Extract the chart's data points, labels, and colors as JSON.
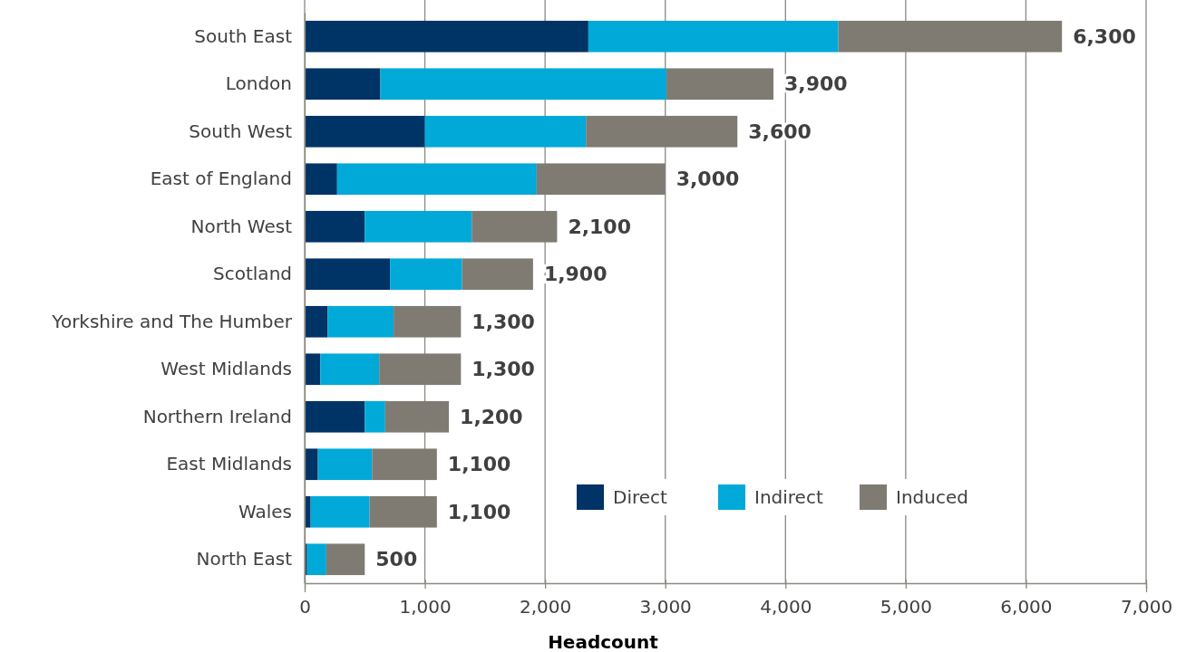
{
  "chart_data": {
    "type": "bar",
    "orientation": "horizontal",
    "stacked": true,
    "xlabel": "Headcount",
    "categories": [
      "South East",
      "London",
      "South West",
      "East of England",
      "North West",
      "Scotland",
      "Yorkshire and The Humber",
      "West Midlands",
      "Northern Ireland",
      "East Midlands",
      "Wales",
      "North East"
    ],
    "series": [
      {
        "name": "Direct",
        "color": "#003366",
        "values": [
          2360,
          630,
          1000,
          270,
          500,
          710,
          190,
          130,
          500,
          110,
          50,
          20
        ]
      },
      {
        "name": "Indirect",
        "color": "#00a9d8",
        "values": [
          2080,
          2380,
          1340,
          1660,
          890,
          600,
          550,
          490,
          170,
          450,
          490,
          160
        ]
      },
      {
        "name": "Induced",
        "color": "#7f7b73",
        "values": [
          1860,
          890,
          1260,
          1070,
          710,
          590,
          560,
          680,
          530,
          540,
          560,
          320
        ]
      }
    ],
    "totals": [
      "6,300",
      "3,900",
      "3,600",
      "3,000",
      "2,100",
      "1,900",
      "1,300",
      "1,300",
      "1,200",
      "1,100",
      "1,100",
      "500"
    ],
    "xlim": [
      0,
      7000
    ],
    "xticks": [
      {
        "value": 0,
        "label": "0"
      },
      {
        "value": 1000,
        "label": "1,000"
      },
      {
        "value": 2000,
        "label": "2,000"
      },
      {
        "value": 3000,
        "label": "3,000"
      },
      {
        "value": 4000,
        "label": "4,000"
      },
      {
        "value": 5000,
        "label": "5,000"
      },
      {
        "value": 6000,
        "label": "6,000"
      },
      {
        "value": 7000,
        "label": "7,000"
      }
    ],
    "grid": "x",
    "legend": "bottom right"
  }
}
